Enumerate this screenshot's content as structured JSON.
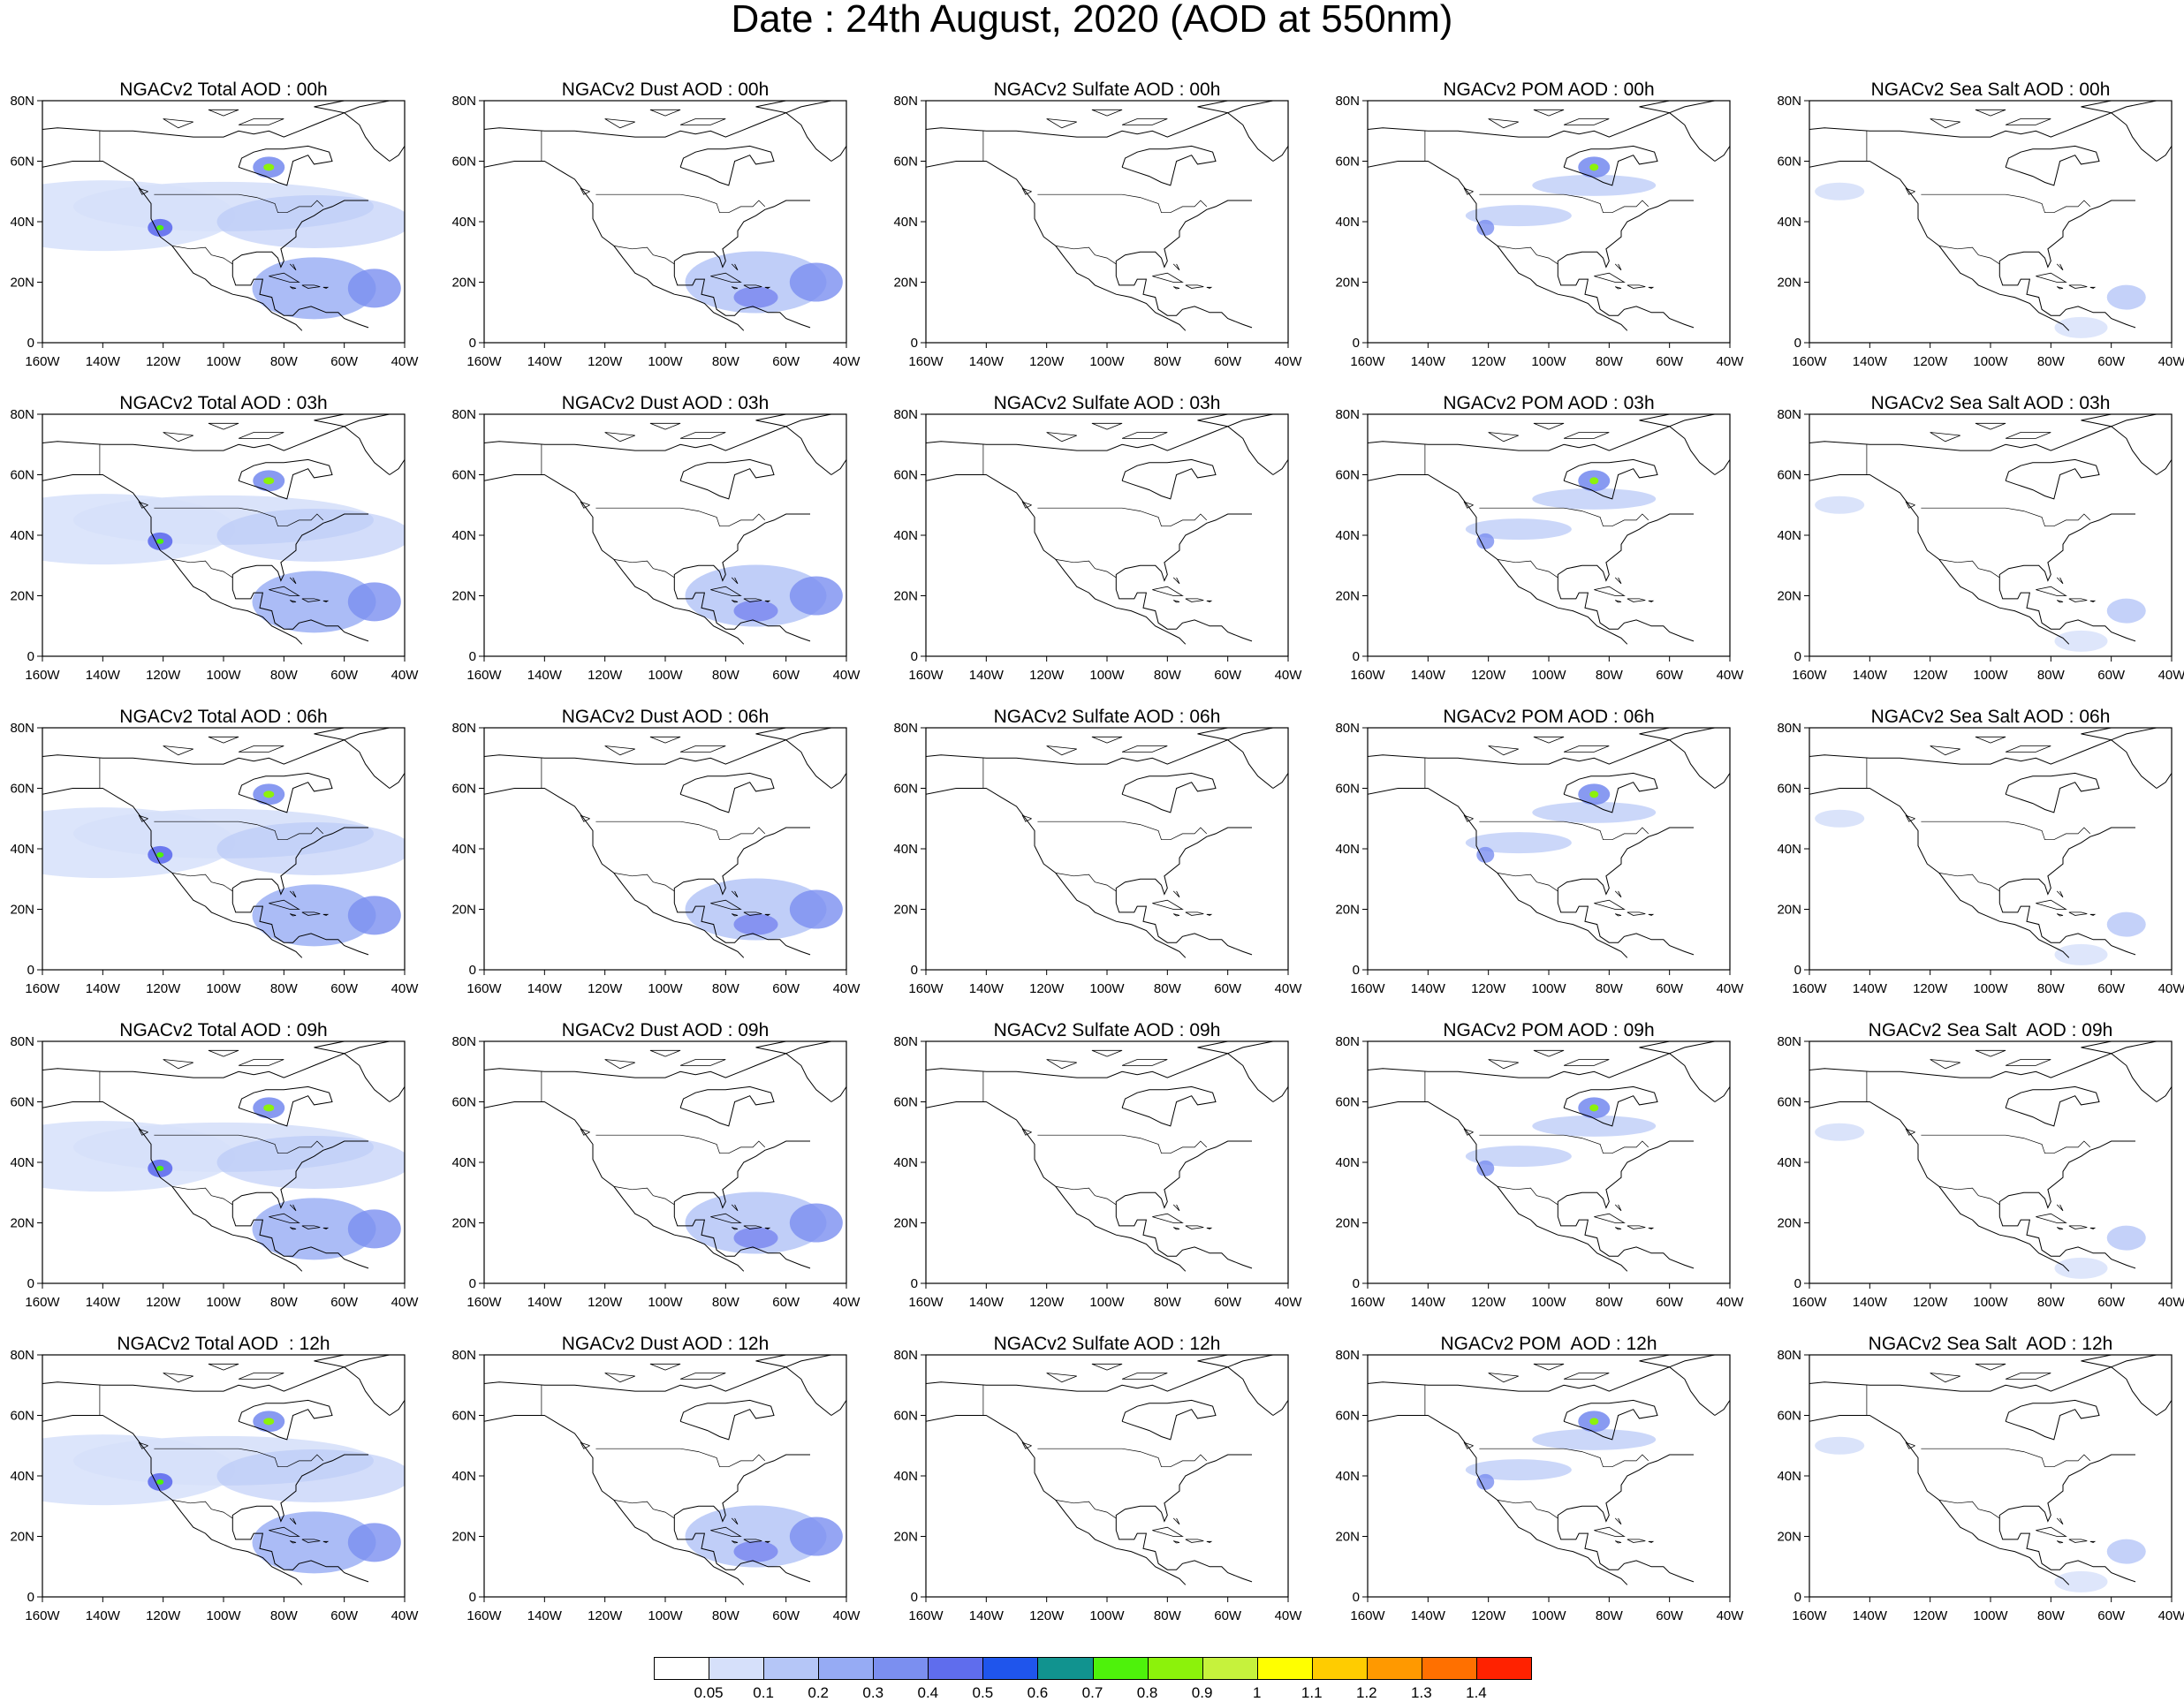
{
  "title": "Date : 24th August, 2020 (AOD at 550nm)",
  "panel_titles": [
    [
      "NGACv2 Total AOD : 00h",
      "NGACv2 Dust AOD : 00h",
      "NGACv2 Sulfate AOD : 00h",
      "NGACv2 POM AOD : 00h",
      "NGACv2 Sea Salt AOD : 00h"
    ],
    [
      "NGACv2 Total AOD : 03h",
      "NGACv2 Dust AOD : 03h",
      "NGACv2 Sulfate AOD : 03h",
      "NGACv2 POM AOD : 03h",
      "NGACv2 Sea Salt AOD : 03h"
    ],
    [
      "NGACv2 Total AOD : 06h",
      "NGACv2 Dust AOD : 06h",
      "NGACv2 Sulfate AOD : 06h",
      "NGACv2 POM AOD : 06h",
      "NGACv2 Sea Salt AOD : 06h"
    ],
    [
      "NGACv2 Total AOD : 09h",
      "NGACv2 Dust AOD : 09h",
      "NGACv2 Sulfate AOD : 09h",
      "NGACv2 POM AOD : 09h",
      "NGACv2 Sea Salt  AOD : 09h"
    ],
    [
      "NGACv2 Total AOD  : 12h",
      "NGACv2 Dust AOD : 12h",
      "NGACv2 Sulfate AOD : 12h",
      "NGACv2 POM  AOD : 12h",
      "NGACv2 Sea Salt  AOD : 12h"
    ]
  ],
  "lat_ticks": [
    "0",
    "20N",
    "40N",
    "60N",
    "80N"
  ],
  "lon_ticks": [
    "160W",
    "140W",
    "120W",
    "100W",
    "80W",
    "60W",
    "40W"
  ],
  "colorbar": {
    "labels": [
      "0.05",
      "0.1",
      "0.2",
      "0.3",
      "0.4",
      "0.5",
      "0.6",
      "0.7",
      "0.8",
      "0.9",
      "1",
      "1.1",
      "1.2",
      "1.3",
      "1.4"
    ],
    "colors": [
      "#ffffff",
      "#d6e0fa",
      "#b5c6f7",
      "#96abf4",
      "#7b8ff0",
      "#5f6ded",
      "#1f55ec",
      "#11938f",
      "#4ef20b",
      "#8cf20b",
      "#c6f23c",
      "#ffff00",
      "#ffcc00",
      "#ff9900",
      "#ff7000",
      "#ff2200"
    ]
  }
}
